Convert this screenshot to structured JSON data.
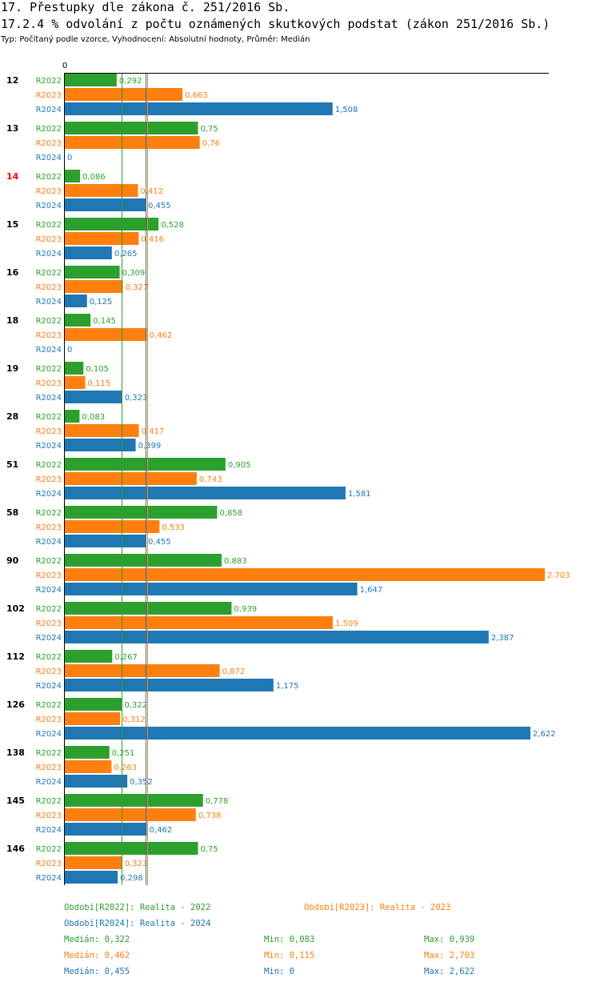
{
  "header": {
    "title": "17. Přestupky dle zákona č. 251/2016 Sb.",
    "subtitle": "17.2.4 % odvolání z počtu oznámených skutkových podstat (zákon 251/2016 Sb.)",
    "type_line": "Typ: Počítaný podle vzorce, Vyhodnocení: Absolutní hodnoty, Průměr: Medián"
  },
  "colors": {
    "R2022": "#2ca02c",
    "R2023": "#ff7f0e",
    "R2024": "#1f77b4",
    "highlight": "#ff0000"
  },
  "chart_data": {
    "type": "bar",
    "orientation": "horizontal",
    "axis_zero_label": "0",
    "xlim": [
      0,
      2.703
    ],
    "categories": [
      "12",
      "13",
      "14",
      "15",
      "16",
      "18",
      "19",
      "28",
      "51",
      "58",
      "90",
      "102",
      "112",
      "126",
      "138",
      "145",
      "146"
    ],
    "highlighted_category": "14",
    "series": [
      {
        "name": "R2022",
        "values": [
          0.292,
          0.75,
          0.086,
          0.528,
          0.309,
          0.145,
          0.105,
          0.083,
          0.905,
          0.858,
          0.883,
          0.939,
          0.267,
          0.322,
          0.251,
          0.778,
          0.75
        ],
        "labels": [
          "0,292",
          "0,75",
          "0,086",
          "0,528",
          "0,309",
          "0,145",
          "0,105",
          "0,083",
          "0,905",
          "0,858",
          "0,883",
          "0,939",
          "0,267",
          "0,322",
          "0,251",
          "0,778",
          "0,75"
        ]
      },
      {
        "name": "R2023",
        "values": [
          0.663,
          0.76,
          0.412,
          0.416,
          0.327,
          0.462,
          0.115,
          0.417,
          0.743,
          0.533,
          2.703,
          1.509,
          0.872,
          0.312,
          0.263,
          0.738,
          0.323
        ],
        "labels": [
          "0,663",
          "0,76",
          "0,412",
          "0,416",
          "0,327",
          "0,462",
          "0,115",
          "0,417",
          "0,743",
          "0,533",
          "2,703",
          "1,509",
          "0,872",
          "0,312",
          "0,263",
          "0,738",
          "0,323"
        ]
      },
      {
        "name": "R2024",
        "values": [
          1.508,
          0,
          0.455,
          0.265,
          0.125,
          0,
          0.323,
          0.399,
          1.581,
          0.455,
          1.647,
          2.387,
          1.175,
          2.622,
          0.352,
          0.462,
          0.298
        ],
        "labels": [
          "1,508",
          "0",
          "0,455",
          "0,265",
          "0,125",
          "0",
          "0,323",
          "0,399",
          "1,581",
          "0,455",
          "1,647",
          "2,387",
          "1,175",
          "2,622",
          "0,352",
          "0,462",
          "0,298"
        ]
      }
    ],
    "medians": [
      0.322,
      0.462,
      0.455
    ]
  },
  "legend": {
    "r2022": "Období[R2022]: Realita - 2022",
    "r2023": "Období[R2023]: Realita - 2023",
    "r2024": "Období[R2024]: Realita - 2024"
  },
  "stats": {
    "r2022": {
      "median": "Medián: 0,322",
      "min": "Min: 0,083",
      "max": "Max: 0,939"
    },
    "r2023": {
      "median": "Medián: 0,462",
      "min": "Min: 0,115",
      "max": "Max: 2,703"
    },
    "r2024": {
      "median": "Medián: 0,455",
      "min": "Min: 0",
      "max": "Max: 2,622"
    }
  }
}
